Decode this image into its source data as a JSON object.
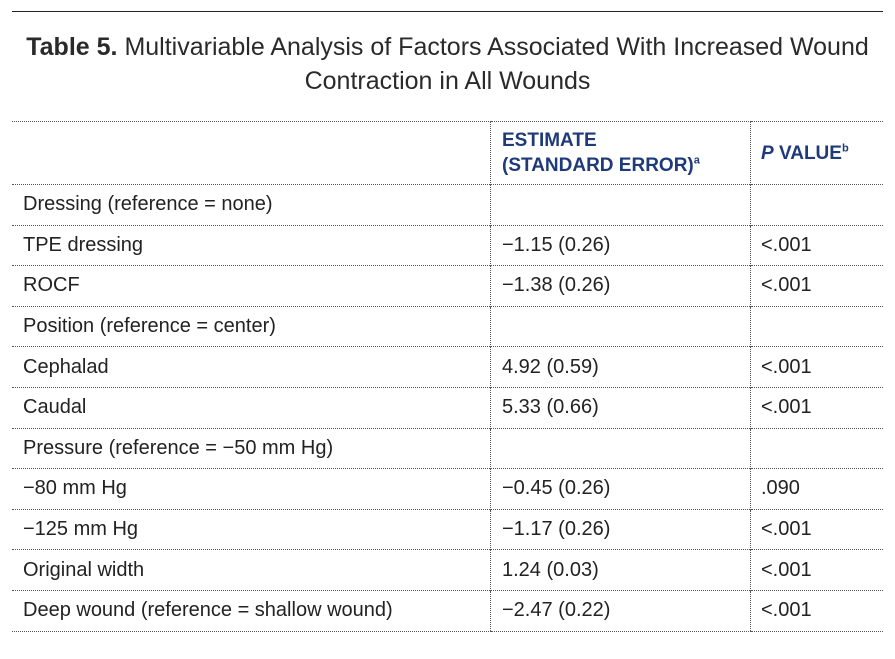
{
  "title": {
    "label": "Table 5.",
    "text": "Multivariable Analysis of Factors Associated With Increased Wound Contraction in All Wounds"
  },
  "header": {
    "estimate_line1": "ESTIMATE",
    "estimate_line2": "(STANDARD ERROR)",
    "estimate_sup": "a",
    "p_italic": "P",
    "p_rest": " VALUE",
    "p_sup": "b"
  },
  "rows": [
    {
      "label": "Dressing (reference = none)",
      "estimate": "",
      "p": "",
      "p_bold": false
    },
    {
      "label": "TPE dressing",
      "estimate": "−1.15 (0.26)",
      "p": "<.001",
      "p_bold": true
    },
    {
      "label": "ROCF",
      "estimate": "−1.38 (0.26)",
      "p": "<.001",
      "p_bold": true
    },
    {
      "label": "Position (reference = center)",
      "estimate": "",
      "p": "",
      "p_bold": false
    },
    {
      "label": "Cephalad",
      "estimate": "4.92 (0.59)",
      "p": "<.001",
      "p_bold": true
    },
    {
      "label": "Caudal",
      "estimate": "5.33 (0.66)",
      "p": "<.001",
      "p_bold": true
    },
    {
      "label": "Pressure (reference = −50 mm Hg)",
      "estimate": "",
      "p": "",
      "p_bold": false
    },
    {
      "label": "−80 mm Hg",
      "estimate": "−0.45 (0.26)",
      "p": ".090",
      "p_bold": false
    },
    {
      "label": "−125 mm Hg",
      "estimate": "−1.17 (0.26)",
      "p": "<.001",
      "p_bold": true
    },
    {
      "label": "Original width",
      "estimate": "1.24 (0.03)",
      "p": "<.001",
      "p_bold": true
    },
    {
      "label": "Deep wound (reference = shallow wound)",
      "estimate": "−2.47 (0.22)",
      "p": "<.001",
      "p_bold": true
    }
  ]
}
